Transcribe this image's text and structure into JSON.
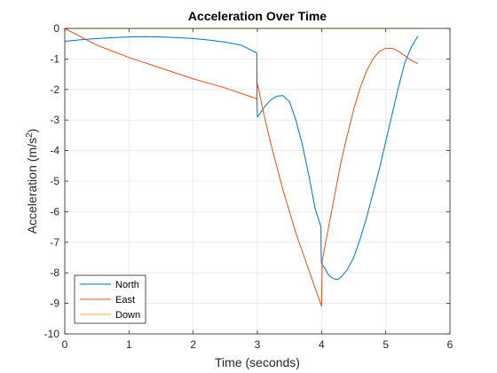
{
  "chart_data": {
    "type": "line",
    "title": "Acceleration Over Time",
    "xlabel": "Time (seconds)",
    "ylabel_main": "Acceleration (m/s",
    "ylabel_sup": "2",
    "ylabel_close": ")",
    "xlim": [
      0,
      6
    ],
    "ylim": [
      -10,
      0
    ],
    "xticks": [
      0,
      1,
      2,
      3,
      4,
      5,
      6
    ],
    "xtick_labels": [
      "0",
      "1",
      "2",
      "3",
      "4",
      "5",
      "6"
    ],
    "yticks": [
      0,
      -1,
      -2,
      -3,
      -4,
      -5,
      -6,
      -7,
      -8,
      -9,
      -10
    ],
    "ytick_labels": [
      "0",
      "-1",
      "-2",
      "-3",
      "-4",
      "-5",
      "-6",
      "-7",
      "-8",
      "-9",
      "-10"
    ],
    "grid": true,
    "legend_position": "bottom-left",
    "series": [
      {
        "name": "North",
        "color": "#0072BD",
        "x": [
          0,
          0.25,
          0.5,
          0.75,
          1.0,
          1.25,
          1.5,
          1.75,
          2.0,
          2.25,
          2.5,
          2.75,
          2.99,
          2.995,
          3.0,
          3.1,
          3.2,
          3.3,
          3.4,
          3.5,
          3.6,
          3.7,
          3.8,
          3.9,
          3.99,
          3.995,
          4.0,
          4.05,
          4.1,
          4.15,
          4.2,
          4.25,
          4.3,
          4.4,
          4.5,
          4.6,
          4.7,
          4.8,
          4.9,
          5.0,
          5.1,
          5.2,
          5.3,
          5.4,
          5.5
        ],
        "y": [
          -0.42,
          -0.37,
          -0.33,
          -0.3,
          -0.28,
          -0.27,
          -0.28,
          -0.3,
          -0.33,
          -0.38,
          -0.45,
          -0.55,
          -0.8,
          -2.5,
          -2.9,
          -2.6,
          -2.35,
          -2.22,
          -2.2,
          -2.4,
          -3.0,
          -3.8,
          -4.8,
          -5.9,
          -6.5,
          -7.5,
          -7.7,
          -7.85,
          -8.05,
          -8.15,
          -8.2,
          -8.22,
          -8.15,
          -7.9,
          -7.5,
          -6.9,
          -6.2,
          -5.4,
          -4.6,
          -3.7,
          -2.8,
          -1.9,
          -1.1,
          -0.6,
          -0.25
        ]
      },
      {
        "name": "East",
        "color": "#D95319",
        "x": [
          0,
          0.5,
          1.0,
          1.5,
          2.0,
          2.5,
          2.99,
          3.0,
          3.1,
          3.2,
          3.3,
          3.4,
          3.5,
          3.6,
          3.7,
          3.8,
          3.9,
          4.0,
          4.01,
          4.1,
          4.2,
          4.3,
          4.4,
          4.5,
          4.6,
          4.7,
          4.8,
          4.9,
          5.0,
          5.1,
          5.2,
          5.3,
          5.4,
          5.5
        ],
        "y": [
          0,
          -0.55,
          -0.95,
          -1.3,
          -1.65,
          -1.95,
          -2.3,
          -1.8,
          -2.8,
          -3.7,
          -4.5,
          -5.3,
          -6.0,
          -6.7,
          -7.3,
          -7.9,
          -8.5,
          -9.1,
          -7.6,
          -6.6,
          -5.5,
          -4.4,
          -3.5,
          -2.65,
          -1.95,
          -1.4,
          -1.0,
          -0.75,
          -0.65,
          -0.65,
          -0.75,
          -0.9,
          -1.05,
          -1.15
        ]
      },
      {
        "name": "Down",
        "color": "#EDB120",
        "x": [
          0,
          5.5
        ],
        "y": [
          0,
          0
        ]
      }
    ]
  }
}
